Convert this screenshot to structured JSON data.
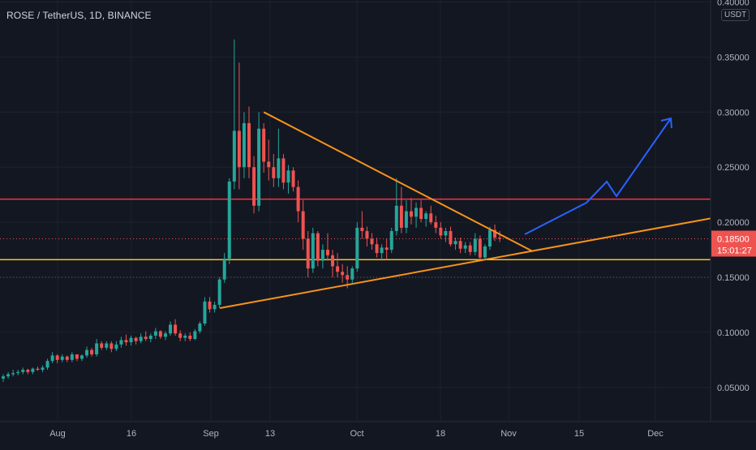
{
  "header": {
    "symbol": "ROSE / TetherUS, 1D, BINANCE",
    "currency": "USDT"
  },
  "colors": {
    "background": "#131722",
    "up": "#26a69a",
    "down": "#ef5350",
    "grid": "#1e222d",
    "axis_text": "#b2b5be",
    "triangle_lines": "#f7931a",
    "resistance_line": "#f23645",
    "support_line": "#f5c518",
    "projection_arrow": "#2962ff",
    "last_price": "#ef5350"
  },
  "price_axis": {
    "ticks": [
      "0.40000",
      "0.35000",
      "0.30000",
      "0.25000",
      "0.20000",
      "0.15000",
      "0.10000",
      "0.05000"
    ],
    "tick_values": [
      0.4,
      0.35,
      0.3,
      0.25,
      0.2,
      0.15,
      0.1,
      0.05
    ]
  },
  "time_axis": {
    "ticks": [
      "Aug",
      "16",
      "Sep",
      "13",
      "Oct",
      "18",
      "Nov",
      "15",
      "Dec"
    ]
  },
  "last_price": {
    "value_text": "0.18500",
    "countdown_text": "15:01:27",
    "value": 0.185
  },
  "chart_data": {
    "type": "candlestick",
    "ylim": [
      0.02,
      0.4
    ],
    "candles": [
      [
        0.058,
        0.062,
        0.055,
        0.06
      ],
      [
        0.06,
        0.064,
        0.058,
        0.062
      ],
      [
        0.062,
        0.066,
        0.06,
        0.063
      ],
      [
        0.063,
        0.066,
        0.061,
        0.064
      ],
      [
        0.064,
        0.068,
        0.062,
        0.066
      ],
      [
        0.066,
        0.067,
        0.062,
        0.064
      ],
      [
        0.064,
        0.068,
        0.062,
        0.067
      ],
      [
        0.067,
        0.069,
        0.065,
        0.066
      ],
      [
        0.066,
        0.07,
        0.064,
        0.068
      ],
      [
        0.068,
        0.076,
        0.066,
        0.074
      ],
      [
        0.074,
        0.082,
        0.072,
        0.079
      ],
      [
        0.079,
        0.08,
        0.072,
        0.075
      ],
      [
        0.075,
        0.08,
        0.073,
        0.078
      ],
      [
        0.078,
        0.079,
        0.073,
        0.075
      ],
      [
        0.075,
        0.082,
        0.073,
        0.08
      ],
      [
        0.08,
        0.08,
        0.074,
        0.076
      ],
      [
        0.076,
        0.08,
        0.074,
        0.079
      ],
      [
        0.079,
        0.087,
        0.077,
        0.084
      ],
      [
        0.084,
        0.086,
        0.078,
        0.08
      ],
      [
        0.08,
        0.094,
        0.078,
        0.09
      ],
      [
        0.09,
        0.092,
        0.084,
        0.086
      ],
      [
        0.086,
        0.092,
        0.084,
        0.09
      ],
      [
        0.09,
        0.092,
        0.082,
        0.085
      ],
      [
        0.085,
        0.092,
        0.083,
        0.089
      ],
      [
        0.089,
        0.096,
        0.086,
        0.093
      ],
      [
        0.093,
        0.098,
        0.088,
        0.091
      ],
      [
        0.091,
        0.097,
        0.088,
        0.095
      ],
      [
        0.095,
        0.096,
        0.089,
        0.092
      ],
      [
        0.092,
        0.099,
        0.09,
        0.096
      ],
      [
        0.096,
        0.101,
        0.092,
        0.094
      ],
      [
        0.094,
        0.099,
        0.091,
        0.097
      ],
      [
        0.097,
        0.104,
        0.094,
        0.101
      ],
      [
        0.101,
        0.102,
        0.094,
        0.096
      ],
      [
        0.096,
        0.101,
        0.093,
        0.099
      ],
      [
        0.099,
        0.11,
        0.097,
        0.107
      ],
      [
        0.107,
        0.112,
        0.097,
        0.099
      ],
      [
        0.099,
        0.102,
        0.092,
        0.095
      ],
      [
        0.095,
        0.099,
        0.092,
        0.097
      ],
      [
        0.097,
        0.1,
        0.092,
        0.094
      ],
      [
        0.094,
        0.103,
        0.093,
        0.101
      ],
      [
        0.101,
        0.11,
        0.099,
        0.108
      ],
      [
        0.108,
        0.132,
        0.106,
        0.128
      ],
      [
        0.128,
        0.132,
        0.118,
        0.121
      ],
      [
        0.121,
        0.128,
        0.118,
        0.125
      ],
      [
        0.125,
        0.15,
        0.122,
        0.148
      ],
      [
        0.148,
        0.172,
        0.145,
        0.167
      ],
      [
        0.167,
        0.24,
        0.162,
        0.237
      ],
      [
        0.237,
        0.366,
        0.23,
        0.283
      ],
      [
        0.283,
        0.345,
        0.23,
        0.25
      ],
      [
        0.25,
        0.3,
        0.24,
        0.29
      ],
      [
        0.29,
        0.305,
        0.24,
        0.25
      ],
      [
        0.25,
        0.26,
        0.208,
        0.215
      ],
      [
        0.215,
        0.3,
        0.21,
        0.285
      ],
      [
        0.285,
        0.29,
        0.245,
        0.255
      ],
      [
        0.255,
        0.275,
        0.238,
        0.25
      ],
      [
        0.25,
        0.262,
        0.232,
        0.24
      ],
      [
        0.24,
        0.285,
        0.232,
        0.258
      ],
      [
        0.258,
        0.262,
        0.23,
        0.236
      ],
      [
        0.236,
        0.252,
        0.226,
        0.247
      ],
      [
        0.247,
        0.25,
        0.228,
        0.232
      ],
      [
        0.232,
        0.238,
        0.2,
        0.21
      ],
      [
        0.21,
        0.22,
        0.175,
        0.185
      ],
      [
        0.185,
        0.192,
        0.15,
        0.158
      ],
      [
        0.158,
        0.195,
        0.154,
        0.19
      ],
      [
        0.19,
        0.192,
        0.16,
        0.165
      ],
      [
        0.165,
        0.18,
        0.158,
        0.175
      ],
      [
        0.175,
        0.19,
        0.165,
        0.17
      ],
      [
        0.17,
        0.175,
        0.15,
        0.16
      ],
      [
        0.16,
        0.172,
        0.15,
        0.155
      ],
      [
        0.155,
        0.162,
        0.145,
        0.152
      ],
      [
        0.152,
        0.16,
        0.14,
        0.148
      ],
      [
        0.148,
        0.16,
        0.145,
        0.158
      ],
      [
        0.158,
        0.2,
        0.155,
        0.195
      ],
      [
        0.195,
        0.21,
        0.185,
        0.192
      ],
      [
        0.192,
        0.196,
        0.178,
        0.185
      ],
      [
        0.185,
        0.19,
        0.175,
        0.18
      ],
      [
        0.18,
        0.186,
        0.168,
        0.172
      ],
      [
        0.172,
        0.18,
        0.165,
        0.177
      ],
      [
        0.177,
        0.185,
        0.166,
        0.175
      ],
      [
        0.175,
        0.195,
        0.172,
        0.192
      ],
      [
        0.192,
        0.24,
        0.188,
        0.215
      ],
      [
        0.215,
        0.232,
        0.19,
        0.195
      ],
      [
        0.195,
        0.22,
        0.19,
        0.21
      ],
      [
        0.21,
        0.222,
        0.198,
        0.205
      ],
      [
        0.205,
        0.218,
        0.195,
        0.213
      ],
      [
        0.213,
        0.22,
        0.2,
        0.203
      ],
      [
        0.203,
        0.21,
        0.196,
        0.208
      ],
      [
        0.208,
        0.215,
        0.198,
        0.2
      ],
      [
        0.2,
        0.206,
        0.19,
        0.195
      ],
      [
        0.195,
        0.2,
        0.185,
        0.188
      ],
      [
        0.188,
        0.195,
        0.182,
        0.192
      ],
      [
        0.192,
        0.196,
        0.178,
        0.18
      ],
      [
        0.18,
        0.186,
        0.175,
        0.183
      ],
      [
        0.183,
        0.186,
        0.172,
        0.176
      ],
      [
        0.176,
        0.182,
        0.172,
        0.179
      ],
      [
        0.179,
        0.182,
        0.17,
        0.173
      ],
      [
        0.173,
        0.19,
        0.17,
        0.185
      ],
      [
        0.185,
        0.188,
        0.165,
        0.168
      ],
      [
        0.168,
        0.18,
        0.166,
        0.178
      ],
      [
        0.178,
        0.196,
        0.175,
        0.193
      ],
      [
        0.193,
        0.198,
        0.183,
        0.186
      ],
      [
        0.186,
        0.192,
        0.182,
        0.185
      ]
    ],
    "horizontal_levels": {
      "resistance": 0.221,
      "support": 0.166,
      "last_price": 0.185
    }
  }
}
